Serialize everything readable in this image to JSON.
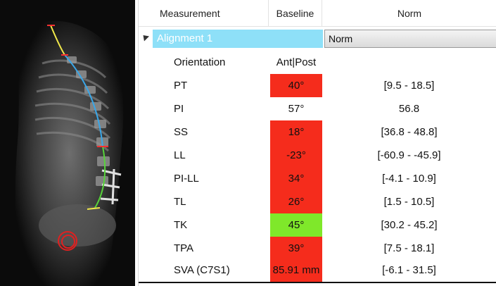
{
  "header": {
    "measurement": "Measurement",
    "baseline": "Baseline",
    "norm": "Norm"
  },
  "group": {
    "label": "Alignment 1",
    "norm_selected": "Norm"
  },
  "rows": [
    {
      "label": "Orientation",
      "baseline": "Ant|Post",
      "norm": "",
      "status": "none"
    },
    {
      "label": "PT",
      "baseline": "40°",
      "norm": "[9.5 - 18.5]",
      "status": "red"
    },
    {
      "label": "PI",
      "baseline": "57°",
      "norm": "56.8",
      "status": "none"
    },
    {
      "label": "SS",
      "baseline": "18°",
      "norm": "[36.8 - 48.8]",
      "status": "red"
    },
    {
      "label": "LL",
      "baseline": "-23°",
      "norm": "[-60.9 - -45.9]",
      "status": "red"
    },
    {
      "label": "PI-LL",
      "baseline": "34°",
      "norm": "[-4.1 - 10.9]",
      "status": "red"
    },
    {
      "label": "TL",
      "baseline": "26°",
      "norm": "[1.5 - 10.5]",
      "status": "red"
    },
    {
      "label": "TK",
      "baseline": "45°",
      "norm": "[30.2 - 45.2]",
      "status": "green"
    },
    {
      "label": "TPA",
      "baseline": "39°",
      "norm": "[7.5 - 18.1]",
      "status": "red"
    },
    {
      "label": "SVA (C7S1)",
      "baseline": "85.91 mm",
      "norm": "[-6.1 - 31.5]",
      "status": "red"
    }
  ],
  "colors": {
    "red": "#f52c1c",
    "green": "#7fe82a",
    "group_highlight": "#8ee0f8"
  },
  "icons": {
    "expander": "triangle-expander-icon"
  }
}
